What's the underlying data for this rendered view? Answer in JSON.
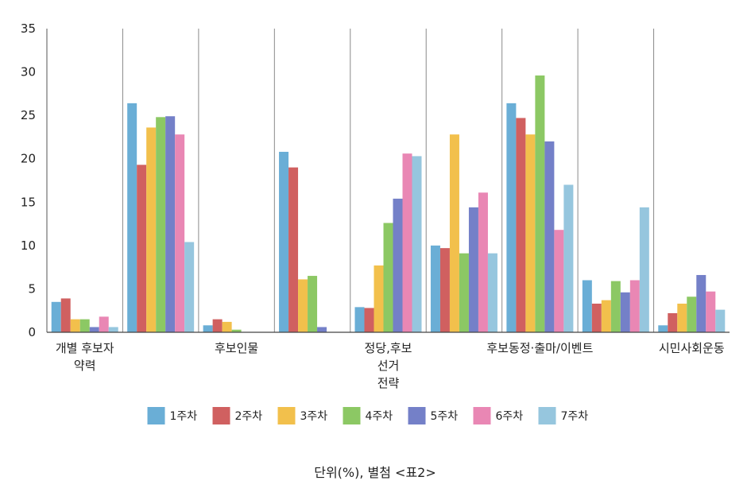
{
  "chart_data": {
    "type": "bar",
    "categories": [
      "개별 후보자 약력",
      "",
      "후보인물",
      "",
      "정당,후보 선거 전략",
      "",
      "후보동정·출마/이벤트",
      "",
      "시민사회운동"
    ],
    "category_label_lines": [
      [
        "개별 후보자",
        "약력"
      ],
      [],
      [
        "후보인물"
      ],
      [],
      [
        "정당,후보",
        "선거",
        "전략"
      ],
      [],
      [
        "후보동정·출마/이벤트"
      ],
      [],
      [
        "시민사회운동"
      ]
    ],
    "series": [
      {
        "name": "1주차",
        "color": "#6aaed6",
        "values": [
          3.5,
          26.4,
          0.8,
          20.8,
          2.9,
          10.0,
          26.4,
          6.0,
          0.8
        ]
      },
      {
        "name": "2주차",
        "color": "#d06060",
        "values": [
          3.9,
          19.3,
          1.5,
          19.0,
          2.8,
          9.7,
          24.7,
          3.3,
          2.2
        ]
      },
      {
        "name": "3주차",
        "color": "#f2c04c",
        "values": [
          1.5,
          23.6,
          1.2,
          6.1,
          7.7,
          22.8,
          22.8,
          3.7,
          3.3
        ]
      },
      {
        "name": "4주차",
        "color": "#8cc864",
        "values": [
          1.5,
          24.8,
          0.3,
          6.5,
          12.6,
          9.1,
          29.6,
          5.9,
          4.1
        ]
      },
      {
        "name": "5주차",
        "color": "#7480c8",
        "values": [
          0.6,
          24.9,
          0.0,
          0.6,
          15.4,
          14.4,
          22.0,
          4.6,
          6.6
        ]
      },
      {
        "name": "6주차",
        "color": "#e987b4",
        "values": [
          1.8,
          22.8,
          0.0,
          0.0,
          20.6,
          16.1,
          11.8,
          6.0,
          4.7
        ]
      },
      {
        "name": "7주차",
        "color": "#96c6de",
        "values": [
          0.6,
          10.4,
          0.0,
          0.0,
          20.3,
          9.1,
          17.0,
          14.4,
          2.6
        ]
      }
    ],
    "ylim": [
      0,
      35
    ],
    "yticks": [
      0,
      5,
      10,
      15,
      20,
      25,
      30,
      35
    ],
    "grid": false,
    "category_separators": true,
    "legend_position": "bottom",
    "title": "",
    "xlabel": "",
    "ylabel": ""
  },
  "caption": "단위(%), 별첨 <표2>"
}
